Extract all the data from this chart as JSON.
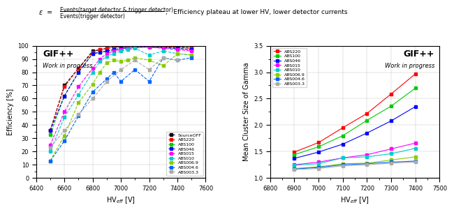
{
  "left_xlabel": "HV$_{eff}$ [V]",
  "left_ylabel": "Efficiency [%]",
  "left_xlim": [
    6400,
    7600
  ],
  "left_ylim": [
    0,
    100
  ],
  "left_xticks": [
    6400,
    6600,
    6800,
    7000,
    7200,
    7400,
    7600
  ],
  "left_yticks": [
    0,
    10,
    20,
    30,
    40,
    50,
    60,
    70,
    80,
    90,
    100
  ],
  "left_gif_text": "GIF++",
  "left_wip_text": "Work in progress",
  "right_xlabel": "HV$_{eff}$ [V]",
  "right_ylabel": "Mean Cluster Size of Gamma",
  "right_xlim": [
    6800,
    7500
  ],
  "right_ylim": [
    1.0,
    3.5
  ],
  "right_xticks": [
    6800,
    6900,
    7000,
    7100,
    7200,
    7300,
    7400,
    7500
  ],
  "right_yticks": [
    1.0,
    1.5,
    2.0,
    2.5,
    3.0,
    3.5
  ],
  "right_gif_text": "GIF++",
  "right_wip_text": "Work in progress",
  "left_series": {
    "SourceOFF": {
      "color": "black",
      "linestyle": "--",
      "marker": "s",
      "markersize": 3,
      "x": [
        6500,
        6600,
        6700,
        6800,
        6850,
        6900,
        6950,
        7000,
        7050,
        7100,
        7200,
        7300,
        7400,
        7500
      ],
      "y": [
        36,
        70,
        83,
        96,
        97,
        98,
        99,
        99,
        99.5,
        99.5,
        99.5,
        99,
        99,
        98.5
      ]
    },
    "ABS220": {
      "color": "#ff0000",
      "linestyle": "--",
      "marker": "s",
      "markersize": 3,
      "x": [
        6500,
        6600,
        6700,
        6800,
        6850,
        6900,
        6950,
        7000,
        7050,
        7100,
        7200,
        7300,
        7400,
        7500
      ],
      "y": [
        36,
        69,
        83,
        95,
        97,
        98,
        99,
        99,
        99.5,
        99.5,
        99.5,
        99,
        99,
        98
      ]
    },
    "ABS100": {
      "color": "#00cc00",
      "linestyle": "--",
      "marker": "s",
      "markersize": 3,
      "x": [
        6500,
        6600,
        6700,
        6800,
        6850,
        6900,
        6950,
        7000,
        7050,
        7100,
        7200,
        7300,
        7400,
        7500
      ],
      "y": [
        33,
        62,
        80,
        94,
        95,
        96,
        97,
        98,
        98.5,
        99,
        99,
        98.5,
        98,
        97
      ]
    },
    "ABS046": {
      "color": "#0000ff",
      "linestyle": "--",
      "marker": "s",
      "markersize": 3,
      "x": [
        6500,
        6600,
        6700,
        6800,
        6850,
        6900,
        6950,
        7000,
        7050,
        7100,
        7200,
        7300,
        7400,
        7500
      ],
      "y": [
        36,
        62,
        80,
        94,
        95,
        96,
        97,
        98,
        98.5,
        99,
        99,
        98.5,
        98,
        97
      ]
    },
    "ABS015": {
      "color": "#ff00ff",
      "linestyle": "--",
      "marker": "s",
      "markersize": 3,
      "x": [
        6500,
        6600,
        6700,
        6800,
        6850,
        6900,
        6950,
        7000,
        7050,
        7100,
        7200,
        7300,
        7400,
        7500
      ],
      "y": [
        25,
        50,
        69,
        83,
        90,
        94,
        96,
        97,
        98,
        98.5,
        99,
        98,
        97,
        96
      ]
    },
    "ABS010": {
      "color": "#00cccc",
      "linestyle": "--",
      "marker": "s",
      "markersize": 3,
      "x": [
        6500,
        6600,
        6700,
        6800,
        6850,
        6900,
        6950,
        7000,
        7050,
        7100,
        7200,
        7300,
        7400,
        7500
      ],
      "y": [
        20,
        46,
        63,
        80,
        88,
        92,
        94,
        96,
        97,
        98,
        93,
        96,
        94,
        93
      ]
    },
    "ABS006.9": {
      "color": "#88cc00",
      "linestyle": "--",
      "marker": "s",
      "markersize": 3,
      "x": [
        6500,
        6600,
        6700,
        6800,
        6850,
        6900,
        6950,
        7000,
        7050,
        7100,
        7200,
        7300,
        7400,
        7500
      ],
      "y": [
        13,
        32,
        57,
        71,
        80,
        87,
        89,
        88,
        89,
        91,
        89,
        85,
        94,
        93
      ]
    },
    "ABS004.6": {
      "color": "#0066ff",
      "linestyle": "--",
      "marker": "s",
      "markersize": 3,
      "x": [
        6500,
        6600,
        6700,
        6800,
        6900,
        6950,
        7000,
        7100,
        7200,
        7300,
        7400,
        7500
      ],
      "y": [
        13,
        28,
        47,
        65,
        75,
        80,
        73,
        82,
        73,
        91,
        89,
        91
      ]
    },
    "ABS003.3": {
      "color": "#aaaaaa",
      "linestyle": "--",
      "marker": "s",
      "markersize": 3,
      "x": [
        6500,
        6600,
        6700,
        6800,
        6900,
        7000,
        7100,
        7200,
        7300,
        7400
      ],
      "y": [
        23,
        36,
        48,
        60,
        73,
        82,
        89,
        82,
        91,
        89
      ]
    }
  },
  "right_series": {
    "ABS220": {
      "color": "#ff0000",
      "linestyle": "-",
      "marker": "s",
      "markersize": 3,
      "x": [
        6900,
        7000,
        7100,
        7200,
        7300,
        7400
      ],
      "y": [
        1.49,
        1.67,
        1.95,
        2.22,
        2.59,
        2.97
      ]
    },
    "ABS100": {
      "color": "#00cc00",
      "linestyle": "-",
      "marker": "s",
      "markersize": 3,
      "x": [
        6900,
        7000,
        7100,
        7200,
        7300,
        7400
      ],
      "y": [
        1.44,
        1.59,
        1.8,
        2.09,
        2.36,
        2.7
      ]
    },
    "ABS046": {
      "color": "#0000ff",
      "linestyle": "-",
      "marker": "s",
      "markersize": 3,
      "x": [
        6900,
        7000,
        7100,
        7200,
        7300,
        7400
      ],
      "y": [
        1.37,
        1.49,
        1.64,
        1.85,
        2.08,
        2.35
      ]
    },
    "ABS015": {
      "color": "#ff00ff",
      "linestyle": "-",
      "marker": "s",
      "markersize": 3,
      "x": [
        6900,
        7000,
        7100,
        7200,
        7300,
        7400
      ],
      "y": [
        1.25,
        1.3,
        1.38,
        1.44,
        1.55,
        1.66
      ]
    },
    "ABS010": {
      "color": "#00cccc",
      "linestyle": "-",
      "marker": "s",
      "markersize": 3,
      "x": [
        6900,
        7000,
        7100,
        7200,
        7300,
        7400
      ],
      "y": [
        1.24,
        1.27,
        1.38,
        1.4,
        1.46,
        1.56
      ]
    },
    "ABS006.9": {
      "color": "#88cc00",
      "linestyle": "-",
      "marker": "s",
      "markersize": 3,
      "x": [
        6900,
        7000,
        7100,
        7200,
        7300,
        7400
      ],
      "y": [
        1.18,
        1.21,
        1.27,
        1.28,
        1.34,
        1.4
      ]
    },
    "ABS004.6": {
      "color": "#0066ff",
      "linestyle": "-",
      "marker": "s",
      "markersize": 3,
      "x": [
        6900,
        7000,
        7100,
        7200,
        7300,
        7400
      ],
      "y": [
        1.17,
        1.2,
        1.25,
        1.27,
        1.3,
        1.32
      ]
    },
    "ABS003.3": {
      "color": "#aaaaaa",
      "linestyle": "-",
      "marker": "s",
      "markersize": 3,
      "x": [
        6900,
        7000,
        7100,
        7200,
        7300,
        7400
      ],
      "y": [
        1.16,
        1.18,
        1.23,
        1.25,
        1.28,
        1.3
      ]
    }
  }
}
